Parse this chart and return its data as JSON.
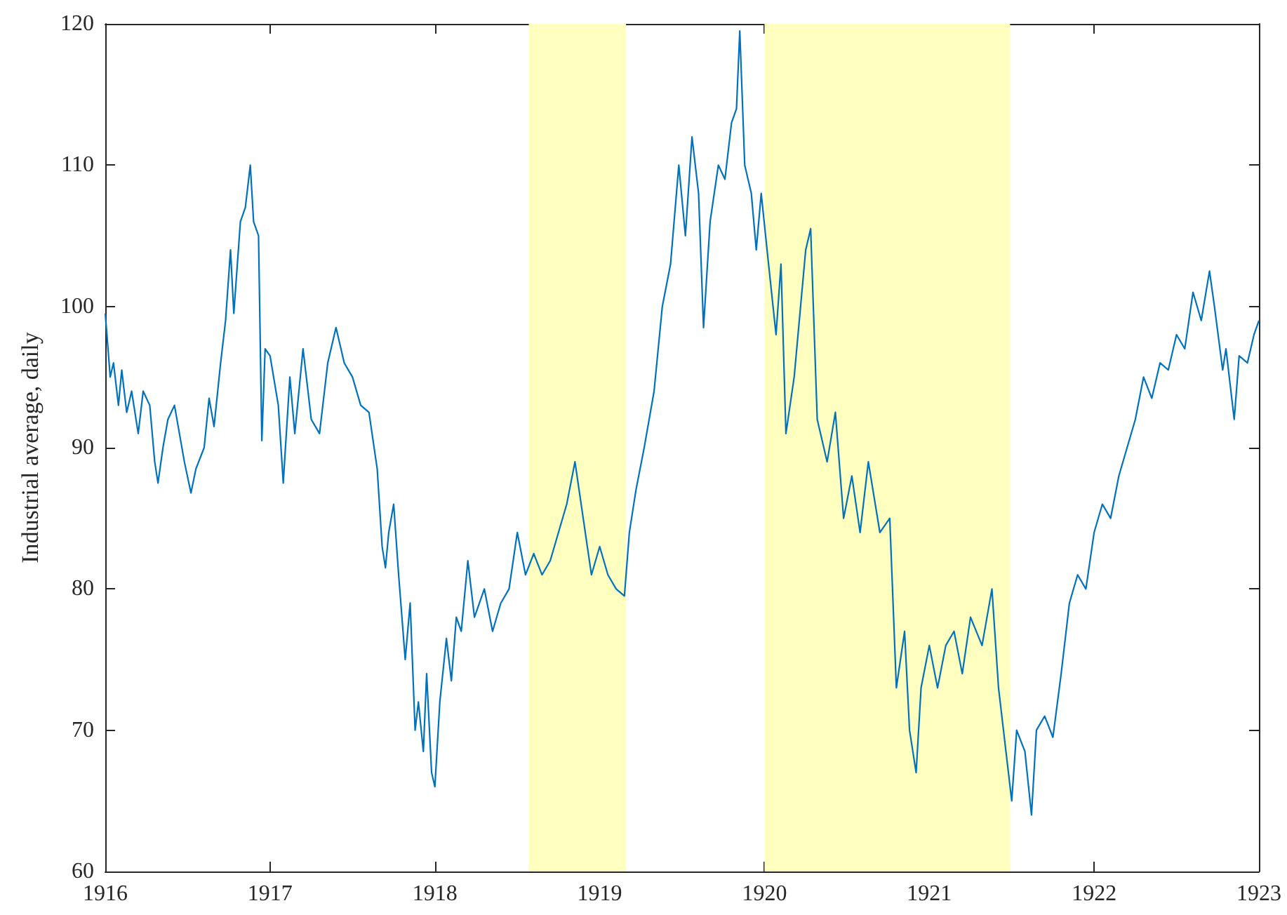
{
  "chart_data": {
    "type": "line",
    "ylabel": "Industrial average, daily",
    "xlim": [
      1916,
      1923
    ],
    "xticks": [
      1916,
      1917,
      1918,
      1919,
      1920,
      1921,
      1922,
      1923
    ],
    "ylim": [
      60,
      120
    ],
    "yticks": [
      60,
      70,
      80,
      90,
      100,
      110,
      120
    ],
    "grid": false,
    "marker": "none",
    "line_style": "solid",
    "bands": [
      {
        "axis": "x",
        "from": 1918.57,
        "to": 1919.16,
        "color": "#ffffc0"
      },
      {
        "axis": "x",
        "from": 1920.0,
        "to": 1921.49,
        "color": "#ffffc0"
      }
    ],
    "series": [
      {
        "color": "#0072bd",
        "x": [
          1916.0,
          1916.03,
          1916.05,
          1916.08,
          1916.1,
          1916.13,
          1916.16,
          1916.2,
          1916.23,
          1916.27,
          1916.3,
          1916.32,
          1916.35,
          1916.38,
          1916.42,
          1916.45,
          1916.48,
          1916.52,
          1916.55,
          1916.6,
          1916.63,
          1916.66,
          1916.7,
          1916.73,
          1916.76,
          1916.78,
          1916.82,
          1916.85,
          1916.88,
          1916.9,
          1916.93,
          1916.95,
          1916.97,
          1917.0,
          1917.05,
          1917.08,
          1917.12,
          1917.15,
          1917.2,
          1917.25,
          1917.3,
          1917.35,
          1917.4,
          1917.45,
          1917.5,
          1917.55,
          1917.6,
          1917.65,
          1917.68,
          1917.7,
          1917.72,
          1917.75,
          1917.78,
          1917.82,
          1917.85,
          1917.88,
          1917.9,
          1917.93,
          1917.95,
          1917.98,
          1918.0,
          1918.03,
          1918.07,
          1918.1,
          1918.13,
          1918.16,
          1918.2,
          1918.24,
          1918.3,
          1918.35,
          1918.4,
          1918.45,
          1918.5,
          1918.55,
          1918.6,
          1918.65,
          1918.7,
          1918.75,
          1918.8,
          1918.85,
          1918.9,
          1918.95,
          1919.0,
          1919.05,
          1919.1,
          1919.15,
          1919.18,
          1919.22,
          1919.27,
          1919.33,
          1919.38,
          1919.43,
          1919.48,
          1919.52,
          1919.56,
          1919.6,
          1919.63,
          1919.67,
          1919.72,
          1919.76,
          1919.8,
          1919.83,
          1919.85,
          1919.88,
          1919.92,
          1919.95,
          1919.98,
          1920.02,
          1920.07,
          1920.1,
          1920.13,
          1920.18,
          1920.25,
          1920.28,
          1920.32,
          1920.38,
          1920.43,
          1920.48,
          1920.53,
          1920.58,
          1920.63,
          1920.7,
          1920.76,
          1920.8,
          1920.85,
          1920.88,
          1920.92,
          1920.95,
          1921.0,
          1921.05,
          1921.1,
          1921.15,
          1921.2,
          1921.25,
          1921.32,
          1921.38,
          1921.42,
          1921.48,
          1921.5,
          1921.53,
          1921.58,
          1921.62,
          1921.65,
          1921.7,
          1921.75,
          1921.8,
          1921.85,
          1921.9,
          1921.95,
          1922.0,
          1922.05,
          1922.1,
          1922.15,
          1922.2,
          1922.25,
          1922.3,
          1922.35,
          1922.4,
          1922.45,
          1922.5,
          1922.55,
          1922.6,
          1922.65,
          1922.7,
          1922.73,
          1922.78,
          1922.8,
          1922.85,
          1922.88,
          1922.93,
          1922.97,
          1923.0
        ],
        "values": [
          99.5,
          95,
          96,
          93,
          95.5,
          92.5,
          94,
          91,
          94,
          93,
          89,
          87.5,
          90,
          92,
          93,
          91,
          89,
          86.8,
          88.5,
          90,
          93.5,
          91.5,
          96,
          99,
          104,
          99.5,
          106,
          107,
          110,
          106,
          105,
          90.5,
          97,
          96.5,
          93,
          87.5,
          95,
          91,
          97,
          92,
          91,
          96,
          98.5,
          96,
          95,
          93,
          92.5,
          88.5,
          83,
          81.5,
          84,
          86,
          81,
          75,
          79,
          70,
          72,
          68.5,
          74,
          67,
          66,
          72,
          76.5,
          73.5,
          78,
          77,
          82,
          78,
          80,
          77,
          79,
          80,
          84,
          81,
          82.5,
          81,
          82,
          84,
          86,
          89,
          85,
          81,
          83,
          81,
          80,
          79.5,
          84,
          87,
          90,
          94,
          100,
          103,
          110,
          105,
          112,
          108,
          98.5,
          106,
          110,
          109,
          113,
          114,
          119.5,
          110,
          108,
          104,
          108,
          103.5,
          98,
          103,
          91,
          95,
          104,
          105.5,
          92,
          89,
          92.5,
          85,
          88,
          84,
          89,
          84,
          85,
          73,
          77,
          70,
          67,
          73,
          76,
          73,
          76,
          77,
          74,
          78,
          76,
          80,
          73,
          67,
          65,
          70,
          68.5,
          64,
          70,
          71,
          69.5,
          74,
          79,
          81,
          80,
          84,
          86,
          85,
          88,
          90,
          92,
          95,
          93.5,
          96,
          95.5,
          98,
          97,
          101,
          99,
          102.5,
          100,
          95.5,
          97,
          92,
          96.5,
          96,
          98,
          99
        ]
      }
    ]
  }
}
